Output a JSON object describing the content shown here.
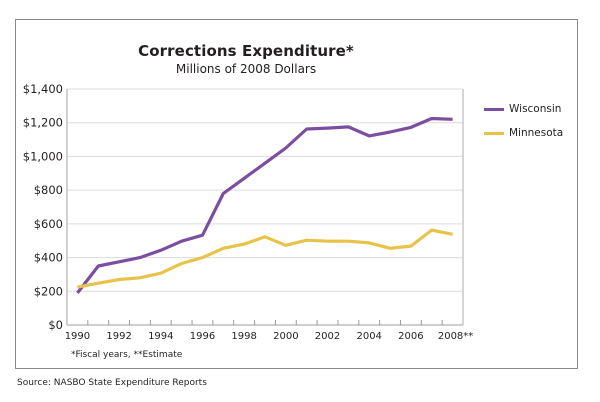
{
  "chart_data": {
    "type": "line",
    "title": "Corrections Expenditure*",
    "subtitle": "Millions of 2008 Dollars",
    "xlabel": "",
    "ylabel": "",
    "x": [
      "1990",
      "1991",
      "1992",
      "1993",
      "1994",
      "1995",
      "1996",
      "1997",
      "1998",
      "1999",
      "2000",
      "2001",
      "2002",
      "2003",
      "2004",
      "2005",
      "2006",
      "2007",
      "2008"
    ],
    "x_tick_labels": [
      "1990",
      "1992",
      "1994",
      "1996",
      "1998",
      "2000",
      "2002",
      "2004",
      "2006",
      "2008**"
    ],
    "ylim": [
      0,
      1400
    ],
    "y_ticks": [
      0,
      200,
      400,
      600,
      800,
      1000,
      1200,
      1400
    ],
    "y_tick_labels": [
      "$0",
      "$200",
      "$400",
      "$600",
      "$800",
      "$1,000",
      "$1,200",
      "$1,400"
    ],
    "grid": true,
    "legend_position": "right",
    "series": [
      {
        "name": "Wisconsin",
        "color": "#7b4ea0",
        "values": [
          190,
          350,
          375,
          400,
          443,
          497,
          533,
          780,
          870,
          960,
          1050,
          1163,
          1168,
          1175,
          1122,
          1145,
          1172,
          1225,
          1220
        ]
      },
      {
        "name": "Minnesota",
        "color": "#e8c34a",
        "values": [
          225,
          248,
          270,
          280,
          307,
          365,
          400,
          455,
          480,
          523,
          473,
          503,
          497,
          497,
          487,
          455,
          468,
          563,
          538
        ]
      }
    ],
    "footnote": "*Fiscal years, **Estimate",
    "source": "Source: NASBO State Expenditure Reports"
  }
}
